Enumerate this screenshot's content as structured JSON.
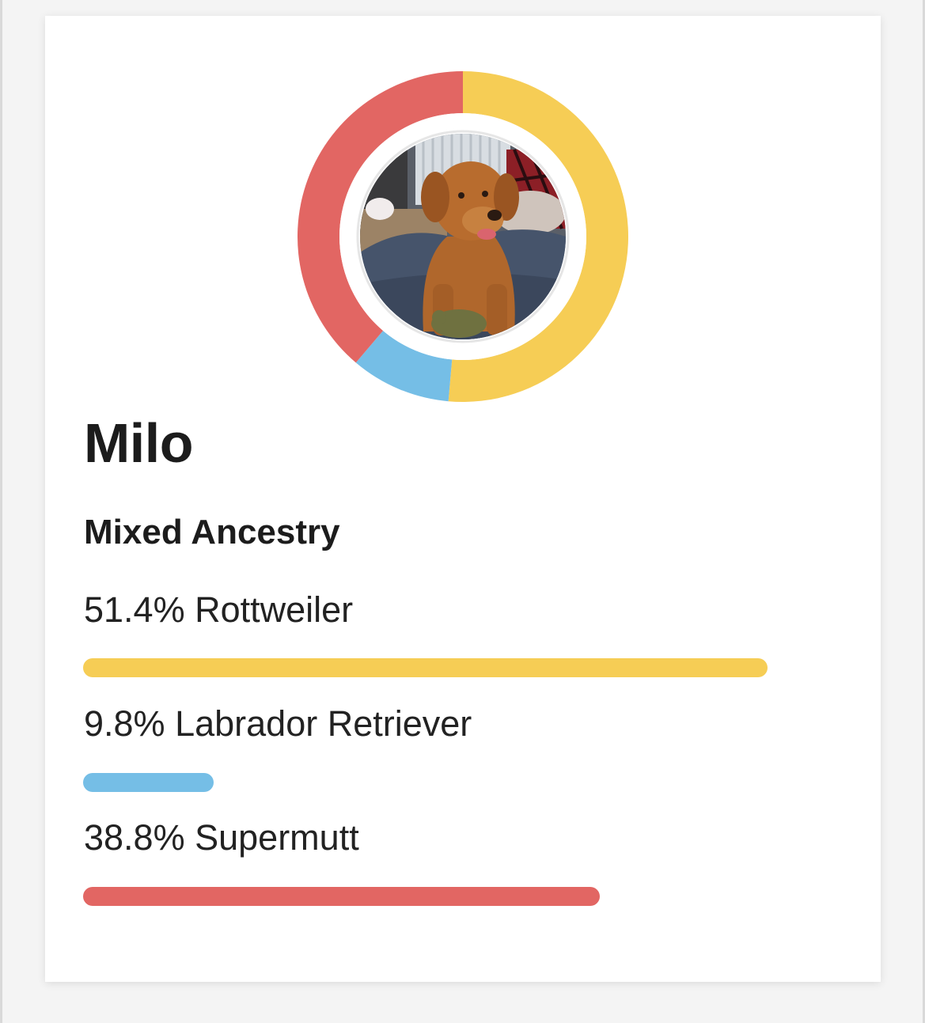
{
  "dog": {
    "name": "Milo",
    "photo_alt": "Milo"
  },
  "ancestry": {
    "title": "Mixed Ancestry",
    "breeds": [
      {
        "label": "51.4% Rottweiler",
        "percent": 51.4,
        "color": "#F6CD55"
      },
      {
        "label": "9.8% Labrador Retriever",
        "percent": 9.8,
        "color": "#75BEE6"
      },
      {
        "label": "38.8% Supermutt",
        "percent": 38.8,
        "color": "#E26663"
      }
    ]
  },
  "chart_data": {
    "type": "pie",
    "style": "donut",
    "categories": [
      "Rottweiler",
      "Labrador Retriever",
      "Supermutt"
    ],
    "values": [
      51.4,
      9.8,
      38.8
    ],
    "colors": [
      "#F6CD55",
      "#75BEE6",
      "#E26663"
    ],
    "order": "clockwise-from-top"
  }
}
